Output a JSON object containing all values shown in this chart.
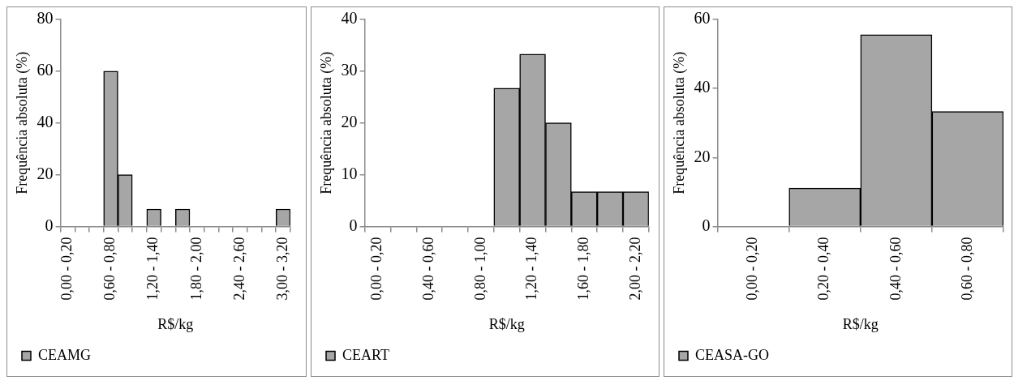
{
  "chart_data": [
    {
      "type": "bar",
      "xlabel": "R$/kg",
      "ylabel": "Frequência absoluta (%)",
      "categories": [
        "0,00 - 0,20",
        null,
        null,
        "0,60 - 0,80",
        null,
        null,
        "1,20 - 1,40",
        null,
        null,
        "1,80 - 2,00",
        null,
        null,
        "2,40 - 2,60",
        null,
        null,
        "3,00 - 3,20"
      ],
      "series": [
        {
          "name": "CEAMG",
          "color": "#a6a6a6",
          "values": [
            0,
            0,
            0,
            60,
            20,
            0,
            6.7,
            0,
            6.7,
            0,
            0,
            0,
            0,
            0,
            0,
            6.7
          ]
        }
      ],
      "ylim": [
        0,
        80
      ],
      "yticks": [
        0,
        20,
        40,
        60,
        80
      ],
      "grid": false,
      "legend": "bottom left"
    },
    {
      "type": "bar",
      "xlabel": "R$/kg",
      "ylabel": "Frequência absoluta (%)",
      "categories": [
        "0,00 - 0,20",
        null,
        "0,40 - 0,60",
        null,
        "0,80 - 1,00",
        null,
        "1,20 - 1,40",
        null,
        "1,60 - 1,80",
        null,
        "2,00 - 2,20"
      ],
      "series": [
        {
          "name": "CEART",
          "color": "#a6a6a6",
          "values": [
            0,
            0,
            0,
            0,
            0,
            26.7,
            33.3,
            20,
            6.7,
            6.7,
            6.7
          ]
        }
      ],
      "ylim": [
        0,
        40
      ],
      "yticks": [
        0,
        10,
        20,
        30,
        40
      ],
      "grid": false,
      "legend": "bottom left"
    },
    {
      "type": "bar",
      "xlabel": "R$/kg",
      "ylabel": "Frequência absoluta (%)",
      "categories": [
        "0,00 - 0,20",
        "0,20 - 0,40",
        "0,40 - 0,60",
        "0,60 - 0,80"
      ],
      "series": [
        {
          "name": "CEASA-GO",
          "color": "#a6a6a6",
          "values": [
            0,
            11.1,
            55.6,
            33.3
          ]
        }
      ],
      "ylim": [
        0,
        60
      ],
      "yticks": [
        0,
        20,
        40,
        60
      ],
      "grid": false,
      "legend": "bottom left"
    }
  ]
}
